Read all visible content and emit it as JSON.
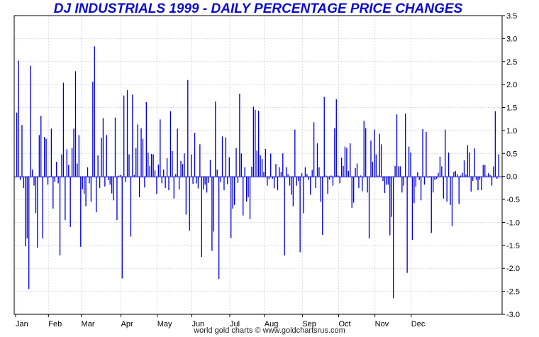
{
  "chart_data": {
    "type": "bar",
    "title": "DJ INDUSTRIALS 1999 - DAILY PERCENTAGE PRICE CHANGES",
    "credit": "world gold charts © www.goldchartsrus.com",
    "xlabel": "",
    "ylabel": "",
    "ylim": [
      -3.0,
      3.5
    ],
    "yticks": [
      -3.0,
      -2.5,
      -2.0,
      -1.5,
      -1.0,
      -0.5,
      0.0,
      0.5,
      1.0,
      1.5,
      2.0,
      2.5,
      3.0,
      3.5
    ],
    "ytick_labels": [
      "-3.0",
      "-2.5",
      "-2.0",
      "-1.5",
      "-1.0",
      "-0.5",
      "0.0",
      "0.5",
      "1.0",
      "1.5",
      "2.0",
      "2.5",
      "3.0",
      "3.5"
    ],
    "months": [
      "Jan",
      "Feb",
      "Mar",
      "Apr",
      "May",
      "Jun",
      "Jul",
      "Aug",
      "Sep",
      "Oct",
      "Nov",
      "Dec"
    ],
    "month_day_index": [
      0,
      19,
      38,
      61,
      82,
      102,
      124,
      144,
      166,
      187,
      208,
      229
    ],
    "bar_color": "#0000dd",
    "grid": true,
    "values": [
      1.39,
      2.52,
      -0.08,
      1.12,
      -0.25,
      -1.52,
      -1.35,
      -2.45,
      2.41,
      0.15,
      -0.2,
      -0.8,
      -1.55,
      0.9,
      1.32,
      -1.35,
      0.86,
      0.82,
      -0.18,
      0.01,
      1.04,
      -0.7,
      -0.12,
      0.32,
      -0.15,
      -1.72,
      0.48,
      2.04,
      -0.95,
      0.59,
      0.25,
      -1.1,
      0.62,
      1.04,
      2.29,
      0.28,
      0.9,
      -1.53,
      -0.28,
      -0.38,
      -0.65,
      0.2,
      -0.15,
      -0.55,
      2.06,
      2.83,
      -0.78,
      0.46,
      -0.25,
      0.84,
      1.27,
      -0.22,
      0.9,
      -0.08,
      -0.18,
      -0.37,
      -0.52,
      1.28,
      -0.95,
      0.02,
      0.03,
      -2.22,
      1.76,
      -0.12,
      1.88,
      0.48,
      -1.31,
      1.78,
      0.03,
      0.62,
      1.13,
      -0.45,
      1.05,
      0.82,
      -0.24,
      1.62,
      0.52,
      0.23,
      0.49,
      0.48,
      0.13,
      -0.38,
      0.26,
      1.24,
      -0.15,
      0.15,
      -0.25,
      0.4,
      -0.3,
      1.42,
      0.55,
      -0.48,
      0.05,
      1.04,
      -0.28,
      0.34,
      0.27,
      0.5,
      -0.83,
      2.1,
      -1.18,
      0.48,
      -0.16,
      0.95,
      -0.15,
      -0.26,
      0.7,
      -1.75,
      -0.28,
      -0.18,
      -0.35,
      -0.14,
      0.36,
      -1.62,
      -1.2,
      1.63,
      0.15,
      -2.23,
      -0.12,
      0.87,
      -0.3,
      0.85,
      -0.17,
      0.42,
      -1.34,
      -0.7,
      -0.62,
      0.62,
      -0.14,
      1.8,
      0.5,
      -0.85,
      0.2,
      -0.55,
      -0.45,
      -0.93,
      0.21,
      1.52,
      1.45,
      0.56,
      1.43,
      0.46,
      0.38,
      0.1,
      0.6,
      -0.2,
      -0.06,
      0.5,
      -0.05,
      -0.26,
      0.27,
      -0.3,
      0.2,
      0.1,
      0.5,
      -1.72,
      0.2,
      0.05,
      -0.2,
      -0.4,
      -0.65,
      1.02,
      -0.2,
      -0.1,
      -1.65,
      0.07,
      -0.8,
      0.2,
      0.05,
      -0.08,
      -0.4,
      0.14,
      1.18,
      -0.25,
      0.72,
      0.2,
      -0.55,
      -1.27,
      1.73,
      0.02,
      -0.38,
      -0.07,
      0.02,
      -0.2,
      1.05,
      1.68,
      0.02,
      -0.15,
      0.41,
      0.23,
      0.65,
      0.62,
      0.12,
      0.72,
      -0.68,
      -0.57,
      0.18,
      0.28,
      -0.25,
      0.02,
      -0.32,
      1.21,
      1.05,
      -0.35,
      -1.35,
      0.78,
      0.32,
      1.02,
      0.48,
      0.02,
      0.93,
      0.7,
      -0.1,
      -0.36,
      -0.18,
      -0.18,
      -1.28,
      -0.88,
      -2.65,
      0.23,
      1.35,
      0.22,
      0.22,
      -0.35,
      -0.2,
      1.37,
      -2.1,
      0.65,
      0.52,
      -1.38,
      -0.58,
      -0.22,
      0.09,
      -0.08,
      -0.52,
      1.03,
      -0.18,
      0.97,
      -0.03,
      0.01,
      -1.23,
      -0.35,
      -0.08,
      -0.05,
      0.08,
      0.43,
      0.22,
      -0.48,
      1.02,
      -0.55,
      0.52,
      -0.62,
      -1.08,
      0.1,
      0.12,
      0.05,
      -0.6,
      0.02,
      0.08,
      0.35,
      0.04,
      0.68,
      0.52,
      -0.33,
      -0.1,
      0.61,
      -0.08,
      -0.3,
      -0.07,
      -0.3,
      0.25,
      0.25,
      0.02,
      0.07,
      0.03,
      -0.2,
      0.22,
      1.42,
      -0.05,
      0.48
    ]
  }
}
